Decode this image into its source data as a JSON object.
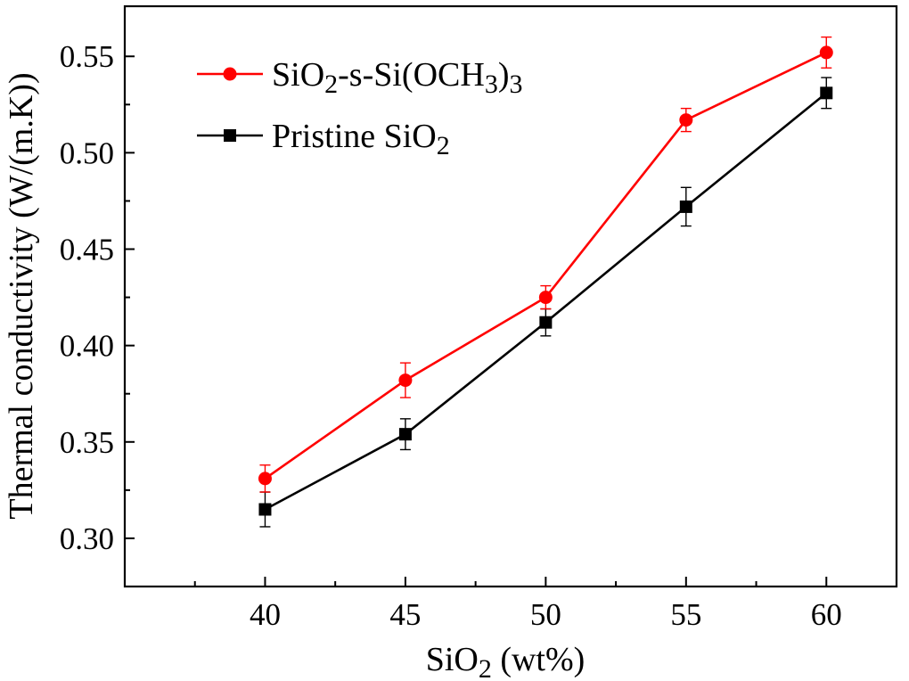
{
  "chart_data": {
    "type": "line",
    "title": "",
    "xlabel": {
      "base": "SiO",
      "sub": "2",
      "rest": " (wt%)"
    },
    "ylabel": "Thermal conductivity (W/(m.K))",
    "xlim": [
      35,
      62.5
    ],
    "ylim": [
      0.275,
      0.576
    ],
    "x_ticks": [
      "40",
      "45",
      "50",
      "55",
      "60"
    ],
    "x_tick_values": [
      40,
      45,
      50,
      55,
      60
    ],
    "x_minor_ticks": [
      37.5,
      42.5,
      47.5,
      52.5,
      57.5
    ],
    "y_ticks": [
      "0.30",
      "0.35",
      "0.40",
      "0.45",
      "0.50",
      "0.55"
    ],
    "y_tick_values": [
      0.3,
      0.35,
      0.4,
      0.45,
      0.5,
      0.55
    ],
    "y_minor_ticks": [
      0.325,
      0.375,
      0.425,
      0.475,
      0.525
    ],
    "grid": false,
    "legend_position": "top-left",
    "x": [
      40,
      45,
      50,
      55,
      60
    ],
    "series": [
      {
        "name": "SiO2-s-Si(OCH3)3",
        "legend_parts": [
          [
            "SiO",
            ""
          ],
          [
            "2",
            "sub"
          ],
          [
            "-s-Si(OCH",
            ""
          ],
          [
            "3",
            "sub"
          ],
          [
            ")",
            ""
          ],
          [
            "3",
            "sub"
          ]
        ],
        "color": "#ff0000",
        "marker": "circle",
        "values": [
          0.331,
          0.382,
          0.425,
          0.517,
          0.552
        ],
        "errors": [
          0.007,
          0.009,
          0.006,
          0.006,
          0.008
        ]
      },
      {
        "name": "Pristine SiO2",
        "legend_parts": [
          [
            "Pristine SiO",
            ""
          ],
          [
            "2",
            "sub"
          ]
        ],
        "color": "#000000",
        "marker": "square",
        "values": [
          0.315,
          0.354,
          0.412,
          0.472,
          0.531
        ],
        "errors": [
          0.009,
          0.008,
          0.007,
          0.01,
          0.008
        ]
      }
    ]
  }
}
